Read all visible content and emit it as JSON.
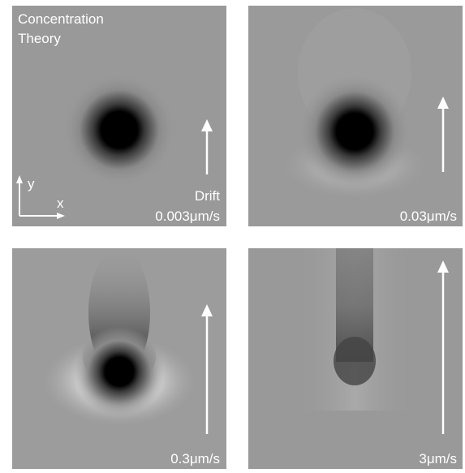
{
  "title_lines": [
    "Concentration",
    "Theory"
  ],
  "axis_labels": {
    "y": "y",
    "x": "x"
  },
  "drift_label": "Drift",
  "panels": [
    {
      "speed": "0.003μm/s"
    },
    {
      "speed": "0.03μm/s"
    },
    {
      "speed": "0.3μm/s"
    },
    {
      "speed": "3μm/s"
    }
  ]
}
